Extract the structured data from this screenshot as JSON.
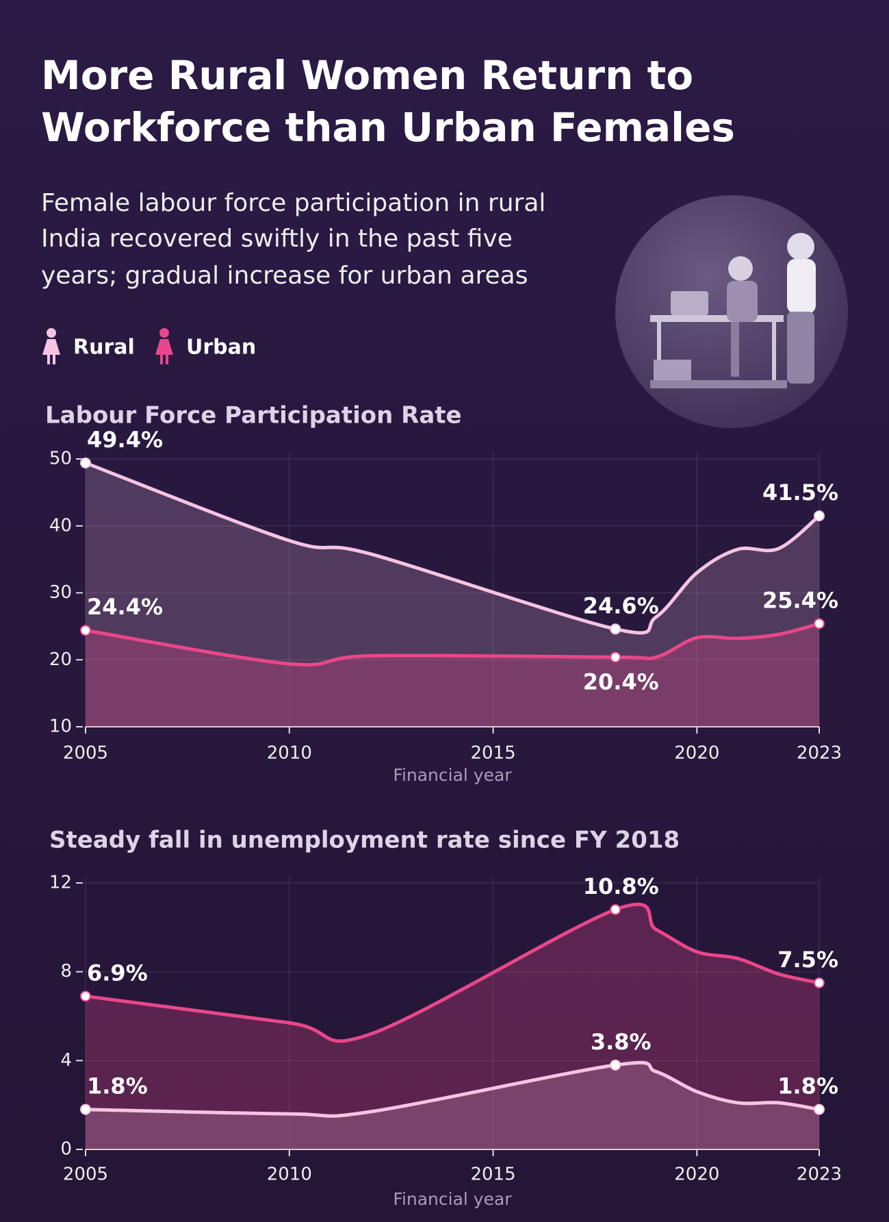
{
  "header": {
    "title": [
      "More Rural Women Return to",
      "Workforce than Urban Females"
    ],
    "subtitle": [
      "Female labour force participation in rural",
      "India recovered swiftly in the past five",
      "years; gradual increase for urban areas"
    ]
  },
  "chart_data": [
    {
      "type": "area",
      "title": "Labour Force Participation Rate",
      "x_label": "Financial year",
      "x": [
        2005,
        2010,
        2012,
        2018,
        2019,
        2020,
        2021,
        2022,
        2023
      ],
      "series": [
        {
          "name": "Rural",
          "color": "#f6c4e3",
          "values": [
            49.4,
            37.8,
            35.8,
            24.6,
            26.4,
            33.0,
            36.5,
            36.6,
            41.5
          ],
          "value_labels": [
            "49.4%",
            null,
            null,
            "24.6%",
            null,
            null,
            null,
            null,
            "41.5%"
          ]
        },
        {
          "name": "Urban",
          "color": "#e9478b",
          "values": [
            24.4,
            19.4,
            20.6,
            20.4,
            20.4,
            23.3,
            23.2,
            23.8,
            25.4
          ],
          "value_labels": [
            "24.4%",
            null,
            null,
            "20.4%",
            null,
            null,
            null,
            null,
            "25.4%"
          ]
        }
      ],
      "xlim": [
        2005,
        2023
      ],
      "xticks": [
        2005,
        2010,
        2015,
        2020,
        2023
      ],
      "ylim": [
        10,
        50
      ],
      "yticks": [
        10,
        20,
        30,
        40,
        50
      ],
      "grid": true
    },
    {
      "type": "area",
      "title": "Steady fall in unemployment rate since FY 2018",
      "x_label": "Financial year",
      "x": [
        2005,
        2010,
        2012,
        2018,
        2019,
        2020,
        2021,
        2022,
        2023
      ],
      "series": [
        {
          "name": "Urban",
          "color": "#e9478b",
          "values": [
            6.9,
            5.7,
            5.2,
            10.8,
            9.9,
            8.9,
            8.6,
            7.9,
            7.5
          ],
          "value_labels": [
            "6.9%",
            null,
            null,
            "10.8%",
            null,
            null,
            null,
            null,
            "7.5%"
          ]
        },
        {
          "name": "Rural",
          "color": "#f6c4e3",
          "values": [
            1.8,
            1.6,
            1.7,
            3.8,
            3.5,
            2.6,
            2.1,
            2.1,
            1.8
          ],
          "value_labels": [
            "1.8%",
            null,
            null,
            "3.8%",
            null,
            null,
            null,
            null,
            "1.8%"
          ]
        }
      ],
      "xlim": [
        2005,
        2023
      ],
      "xticks": [
        2005,
        2010,
        2015,
        2020,
        2023
      ],
      "ylim": [
        0,
        12
      ],
      "yticks": [
        0,
        4,
        8,
        12
      ],
      "grid": true
    }
  ]
}
